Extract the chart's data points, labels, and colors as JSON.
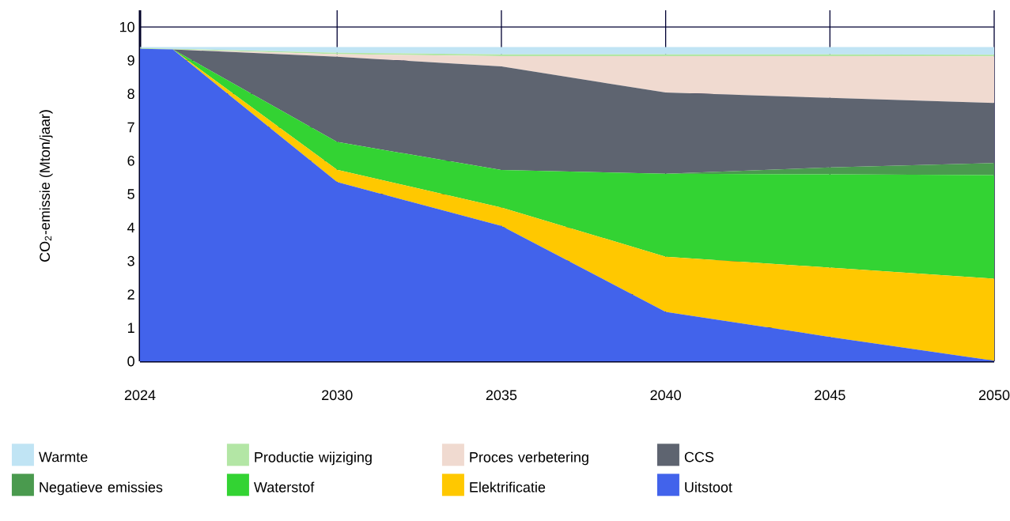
{
  "chart_data": {
    "type": "area",
    "stacked": true,
    "ylabel": "CO$_{2}$-emissie (Mton/jaar)",
    "x": [
      2024,
      2025,
      2030,
      2035,
      2040,
      2045,
      2050
    ],
    "xlim": [
      2024,
      2050
    ],
    "xticks": [
      2024,
      2030,
      2035,
      2040,
      2045,
      2050
    ],
    "ylim": [
      0,
      10.5
    ],
    "yticks": [
      0,
      1,
      2,
      3,
      4,
      5,
      6,
      7,
      8,
      9,
      10
    ],
    "grid": true,
    "legend": "bottom",
    "series": [
      {
        "name": "Uitstoot",
        "color": "#4263eb",
        "values": [
          9.35,
          9.33,
          5.36,
          4.05,
          1.48,
          0.73,
          0.02
        ]
      },
      {
        "name": "Elektrificatie",
        "color": "#ffc800",
        "values": [
          null,
          0,
          0.37,
          0.55,
          1.65,
          2.07,
          2.45
        ]
      },
      {
        "name": "Waterstof",
        "color": "#33d333",
        "values": [
          null,
          0,
          0.83,
          1.12,
          2.48,
          2.79,
          3.1
        ]
      },
      {
        "name": "Negatieve emissies",
        "color": "#4a9a4e",
        "values": [
          null,
          null,
          null,
          null,
          0,
          0.21,
          0.36
        ]
      },
      {
        "name": "CCS",
        "color": "#5e6470",
        "values": [
          null,
          0,
          2.55,
          3.1,
          2.43,
          2.08,
          1.8
        ]
      },
      {
        "name": "Proces verbetering",
        "color": "#f0dad0",
        "values": [
          null,
          0,
          0.08,
          0.31,
          1.09,
          1.25,
          1.39
        ]
      },
      {
        "name": "Productie wijziging",
        "color": "#b3e6a5",
        "values": [
          0.02,
          0.02,
          0.04,
          0.05,
          0.05,
          0.05,
          0.05
        ]
      },
      {
        "name": "Warmte",
        "color": "#c0e4f4",
        "values": [
          0.03,
          0.05,
          0.17,
          0.22,
          0.22,
          0.22,
          0.23
        ]
      }
    ]
  }
}
